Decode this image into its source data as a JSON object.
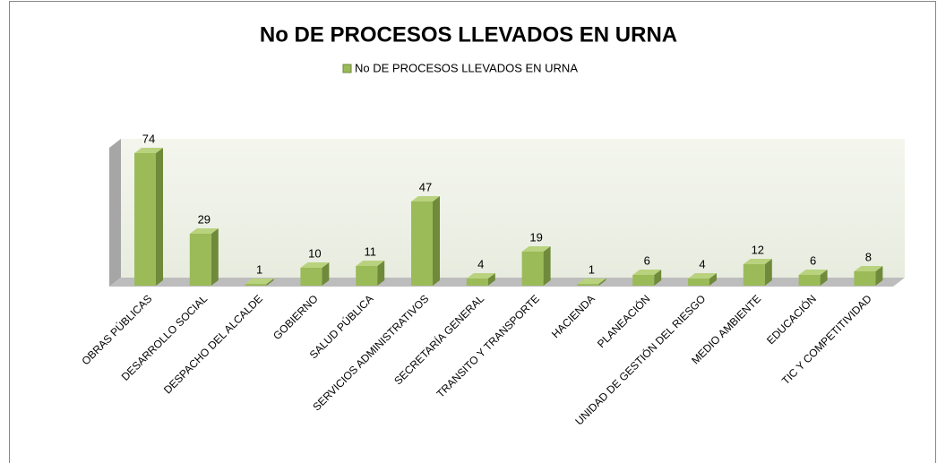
{
  "chart_data": {
    "type": "bar3d",
    "title": "No DE PROCESOS LLEVADOS EN URNA",
    "categories": [
      "OBRAS PÚBLICAS",
      "DESARROLLO SOCIAL",
      "DESPACHO DEL ALCALDE",
      "GOBIERNO",
      "SALUD PÚBLICA",
      "SERVICIOS ADMINISTRATIVOS",
      "SECRETARÍA GENERAL",
      "TRANSITO Y TRANSPORTE",
      "HACIENDA",
      "PLANEACIÓN",
      "UNIDAD DE GESTIÓN DEL RIESGO",
      "MEDIO AMBIENTE",
      "EDUCACIÓN",
      "TIC Y COMPETITIVIDAD"
    ],
    "series": [
      {
        "name": "No DE PROCESOS LLEVADOS EN URNA",
        "color": "#9bbb59",
        "values": [
          74,
          29,
          1,
          10,
          11,
          47,
          4,
          19,
          1,
          6,
          4,
          12,
          6,
          8
        ]
      }
    ],
    "ylim": [
      0,
      80
    ],
    "legend": "top"
  }
}
